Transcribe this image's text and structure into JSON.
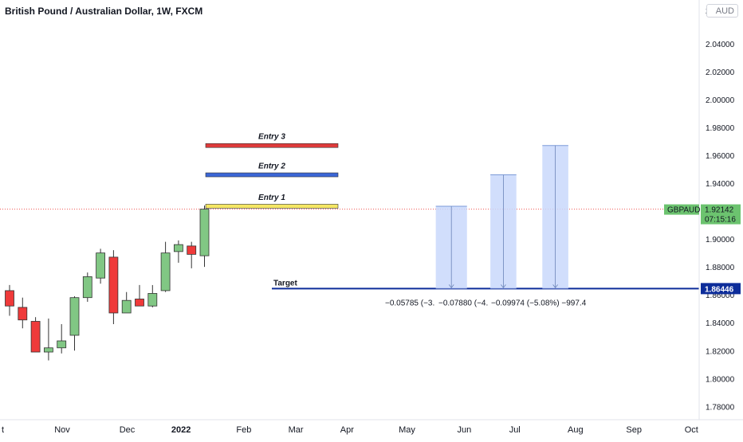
{
  "header": {
    "title": "British Pound / Australian Dollar, 1W, FXCM",
    "currency": "AUD"
  },
  "colors": {
    "up_candle": "#81c784",
    "down_candle": "#ef3a3a",
    "target_line": "#0d2d9a",
    "entry_1": "#f5e663",
    "entry_2": "#3b66d6",
    "entry_3": "#df3b3b",
    "measure_fill": "#c9d8fb",
    "symbol_tag": "#6cc36f"
  },
  "chart_data": {
    "type": "candlestick",
    "symbol": "GBPAUD",
    "y_ticks": [
      "2.04000",
      "2.02000",
      "2.00000",
      "1.98000",
      "1.96000",
      "1.94000",
      "1.92000",
      "1.90000",
      "1.88000",
      "1.86000",
      "1.84000",
      "1.82000",
      "1.80000",
      "1.78000"
    ],
    "top_tick_partial": "2.",
    "ylim": [
      1.7705,
      2.0713
    ],
    "x_ticks": [
      {
        "label": "t",
        "x": 0.0
      },
      {
        "label": "Nov",
        "x": 4.0
      },
      {
        "label": "Dec",
        "x": 9.0
      },
      {
        "label": "2022",
        "x": 13.0,
        "bold": true
      },
      {
        "label": "Feb",
        "x": 18.0
      },
      {
        "label": "Mar",
        "x": 22.0
      },
      {
        "label": "Apr",
        "x": 26.0
      },
      {
        "label": "May",
        "x": 30.5
      },
      {
        "label": "Jun",
        "x": 35.0
      },
      {
        "label": "Jul",
        "x": 39.0
      },
      {
        "label": "Aug",
        "x": 43.5
      },
      {
        "label": "Sep",
        "x": 48.0
      },
      {
        "label": "Oct",
        "x": 52.5
      }
    ],
    "candles": [
      {
        "x": 0,
        "o": 1.863,
        "h": 1.867,
        "l": 1.845,
        "c": 1.852
      },
      {
        "x": 1,
        "o": 1.851,
        "h": 1.858,
        "l": 1.836,
        "c": 1.842
      },
      {
        "x": 2,
        "o": 1.841,
        "h": 1.844,
        "l": 1.819,
        "c": 1.819
      },
      {
        "x": 3,
        "o": 1.819,
        "h": 1.843,
        "l": 1.813,
        "c": 1.822
      },
      {
        "x": 4,
        "o": 1.822,
        "h": 1.839,
        "l": 1.818,
        "c": 1.827
      },
      {
        "x": 5,
        "o": 1.831,
        "h": 1.859,
        "l": 1.82,
        "c": 1.858
      },
      {
        "x": 6,
        "o": 1.858,
        "h": 1.876,
        "l": 1.855,
        "c": 1.873
      },
      {
        "x": 7,
        "o": 1.872,
        "h": 1.893,
        "l": 1.868,
        "c": 1.89
      },
      {
        "x": 8,
        "o": 1.887,
        "h": 1.892,
        "l": 1.839,
        "c": 1.847
      },
      {
        "x": 9,
        "o": 1.847,
        "h": 1.862,
        "l": 1.847,
        "c": 1.856
      },
      {
        "x": 10,
        "o": 1.857,
        "h": 1.867,
        "l": 1.852,
        "c": 1.852
      },
      {
        "x": 11,
        "o": 1.852,
        "h": 1.867,
        "l": 1.851,
        "c": 1.861
      },
      {
        "x": 12,
        "o": 1.863,
        "h": 1.898,
        "l": 1.862,
        "c": 1.89
      },
      {
        "x": 13,
        "o": 1.891,
        "h": 1.899,
        "l": 1.883,
        "c": 1.896
      },
      {
        "x": 14,
        "o": 1.895,
        "h": 1.898,
        "l": 1.879,
        "c": 1.889
      },
      {
        "x": 15,
        "o": 1.888,
        "h": 1.924,
        "l": 1.88,
        "c": 1.9214
      }
    ],
    "horizontal_lines": [
      {
        "name": "Entry 1",
        "y": 1.9235
      },
      {
        "name": "Entry 2",
        "y": 1.946
      },
      {
        "name": "Entry 3",
        "y": 1.967
      }
    ],
    "target": {
      "name": "Target",
      "y": 1.86446
    },
    "last_price": {
      "symbol": "GBPAUD",
      "price": "1.92142",
      "countdown": "07:15:16",
      "y": 1.92142
    },
    "target_tag": "1.86446",
    "measures": [
      {
        "x0": 32.8,
        "x1": 35.2,
        "top": 1.9235,
        "label": "−0.05785 (−3."
      },
      {
        "x0": 37.0,
        "x1": 39.0,
        "top": 1.946,
        "label": "−0.07880 (−4."
      },
      {
        "x0": 41.0,
        "x1": 43.0,
        "top": 1.967,
        "label": "−0.09974 (−5.08%) −997.4"
      }
    ]
  }
}
